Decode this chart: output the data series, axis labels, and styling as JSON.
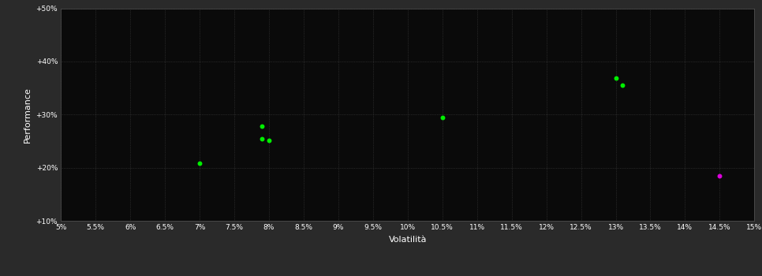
{
  "background_color": "#2a2a2a",
  "plot_bg_color": "#0a0a0a",
  "grid_color": "#404040",
  "text_color": "#ffffff",
  "xlabel": "Volatilità",
  "ylabel": "Performance",
  "xlim": [
    0.05,
    0.15
  ],
  "ylim": [
    0.1,
    0.5
  ],
  "xticks": [
    0.05,
    0.055,
    0.06,
    0.065,
    0.07,
    0.075,
    0.08,
    0.085,
    0.09,
    0.095,
    0.1,
    0.105,
    0.11,
    0.115,
    0.12,
    0.125,
    0.13,
    0.135,
    0.14,
    0.145,
    0.15
  ],
  "xtick_labels": [
    "5%",
    "5.5%",
    "6%",
    "6.5%",
    "7%",
    "7.5%",
    "8%",
    "8.5%",
    "9%",
    "9.5%",
    "10%",
    "10.5%",
    "11%",
    "11.5%",
    "12%",
    "12.5%",
    "13%",
    "13.5%",
    "14%",
    "14.5%",
    "15%"
  ],
  "yticks": [
    0.1,
    0.2,
    0.3,
    0.4,
    0.5
  ],
  "ytick_labels": [
    "+10%",
    "+20%",
    "+30%",
    "+40%",
    "+50%"
  ],
  "green_points": [
    [
      0.07,
      0.208
    ],
    [
      0.079,
      0.278
    ],
    [
      0.079,
      0.255
    ],
    [
      0.08,
      0.252
    ],
    [
      0.105,
      0.295
    ],
    [
      0.13,
      0.368
    ],
    [
      0.131,
      0.355
    ]
  ],
  "magenta_points": [
    [
      0.145,
      0.185
    ]
  ],
  "green_color": "#00ee00",
  "magenta_color": "#dd00dd",
  "marker_size": 18
}
